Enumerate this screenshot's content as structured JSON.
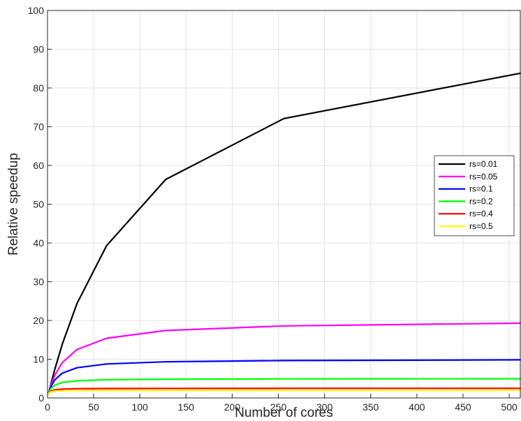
{
  "chart_data": {
    "type": "line",
    "title": "",
    "xlabel": "Number of cores",
    "ylabel": "Relative speedup",
    "xlim": [
      0,
      512
    ],
    "ylim": [
      0,
      100
    ],
    "xticks": [
      0,
      50,
      100,
      150,
      200,
      250,
      300,
      350,
      400,
      450,
      500
    ],
    "yticks": [
      0,
      10,
      20,
      30,
      40,
      50,
      60,
      70,
      80,
      90,
      100
    ],
    "grid": true,
    "legend_position": "right",
    "x": [
      1,
      2,
      4,
      8,
      16,
      32,
      64,
      128,
      256,
      512
    ],
    "series": [
      {
        "name": "rs=0.01",
        "color": "#000000",
        "values": [
          1.0,
          1.98,
          3.88,
          7.48,
          13.9,
          24.4,
          39.3,
          56.4,
          72.1,
          83.8
        ]
      },
      {
        "name": "rs=0.05",
        "color": "#ff00ff",
        "values": [
          1.0,
          1.9,
          3.48,
          5.93,
          9.14,
          12.5,
          15.4,
          17.4,
          18.6,
          19.3
        ]
      },
      {
        "name": "rs=0.1",
        "color": "#0000ff",
        "values": [
          1.0,
          1.82,
          3.08,
          4.71,
          6.4,
          7.8,
          8.77,
          9.34,
          9.66,
          9.83
        ]
      },
      {
        "name": "rs=0.2",
        "color": "#00ff00",
        "values": [
          1.0,
          1.67,
          2.5,
          3.33,
          4.0,
          4.44,
          4.71,
          4.85,
          4.92,
          4.96
        ]
      },
      {
        "name": "rs=0.4",
        "color": "#ff0000",
        "values": [
          1.0,
          1.43,
          1.82,
          2.11,
          2.29,
          2.39,
          2.44,
          2.47,
          2.49,
          2.49
        ]
      },
      {
        "name": "rs=0.5",
        "color": "#ffff00",
        "values": [
          1.0,
          1.33,
          1.6,
          1.78,
          1.88,
          1.94,
          1.97,
          1.98,
          1.99,
          2.0
        ]
      }
    ]
  }
}
